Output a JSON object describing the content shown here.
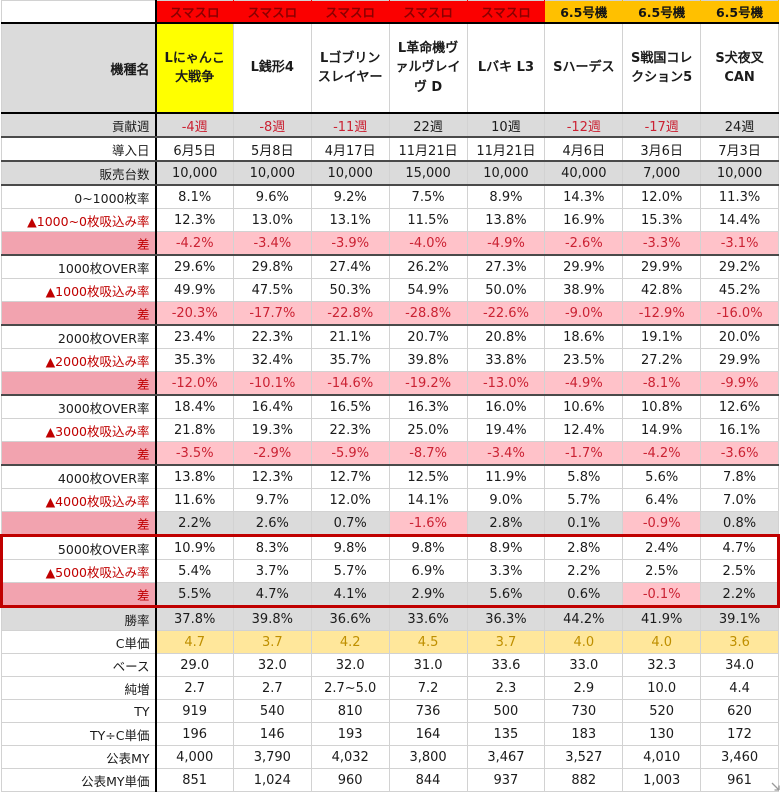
{
  "colors": {
    "type_red_bg": "#FB0000",
    "type_red_text": "#8B0000",
    "type_orange_bg": "#FFC000",
    "highlight_yellow": "#FFFF00",
    "row_gray": "#DBDBDB",
    "diff_pink_label": "#F2A3AF",
    "diff_pink_cell": "#FFC2C9",
    "neg_red": "#CB2233",
    "label_red": "#C00000",
    "cost_yellow": "#FFE79B",
    "cost_text": "#BF8F00",
    "block_border": "#C00000"
  },
  "table": {
    "corner": "",
    "machine_label": "機種名",
    "types": [
      {
        "label": "スマスロ",
        "style": "red"
      },
      {
        "label": "スマスロ",
        "style": "red"
      },
      {
        "label": "スマスロ",
        "style": "red"
      },
      {
        "label": "スマスロ",
        "style": "red"
      },
      {
        "label": "スマスロ",
        "style": "red"
      },
      {
        "label": "6.5号機",
        "style": "orange"
      },
      {
        "label": "6.5号機",
        "style": "orange"
      },
      {
        "label": "6.5号機",
        "style": "orange"
      }
    ],
    "machines": [
      {
        "name": "Lにゃんこ大戦争",
        "highlight": true
      },
      {
        "name": "L銭形4",
        "highlight": false
      },
      {
        "name": "Lゴブリンスレイヤー",
        "highlight": false
      },
      {
        "name": "L革命機ヴァルヴレイヴ D",
        "highlight": false
      },
      {
        "name": "Lバキ L3",
        "highlight": false
      },
      {
        "name": "Sハーデス",
        "highlight": false
      },
      {
        "name": "S戦国コレクション5",
        "highlight": false
      },
      {
        "name": "S犬夜叉CAN",
        "highlight": false
      }
    ],
    "rows": [
      {
        "label": "貢献週",
        "style": "gray",
        "neg_red": true,
        "hb": true,
        "values": [
          "-4週",
          "-8週",
          "-11週",
          "22週",
          "10週",
          "-12週",
          "-17週",
          "24週"
        ]
      },
      {
        "label": "導入日",
        "style": "white",
        "hb": true,
        "values": [
          "6月5日",
          "5月8日",
          "4月17日",
          "11月21日",
          "11月21日",
          "4月6日",
          "3月6日",
          "7月3日"
        ]
      },
      {
        "label": "販売台数",
        "style": "gray",
        "hb": true,
        "values": [
          "10,000",
          "10,000",
          "10,000",
          "15,000",
          "10,000",
          "40,000",
          "7,000",
          "10,000"
        ]
      },
      {
        "label": "0~1000枚率",
        "style": "white",
        "values": [
          "8.1%",
          "9.6%",
          "9.2%",
          "7.5%",
          "8.9%",
          "14.3%",
          "12.0%",
          "11.3%"
        ]
      },
      {
        "label": "▲1000~0枚吸込み率",
        "style": "suck",
        "values": [
          "12.3%",
          "13.0%",
          "13.1%",
          "11.5%",
          "13.8%",
          "16.9%",
          "15.3%",
          "14.4%"
        ]
      },
      {
        "label": "差",
        "style": "diff",
        "hb": true,
        "values": [
          "-4.2%",
          "-3.4%",
          "-3.9%",
          "-4.0%",
          "-4.9%",
          "-2.6%",
          "-3.3%",
          "-3.1%"
        ]
      },
      {
        "label": "1000枚OVER率",
        "style": "white",
        "values": [
          "29.6%",
          "29.8%",
          "27.4%",
          "26.2%",
          "27.3%",
          "29.9%",
          "29.9%",
          "29.2%"
        ]
      },
      {
        "label": "▲1000枚吸込み率",
        "style": "suck",
        "values": [
          "49.9%",
          "47.5%",
          "50.3%",
          "54.9%",
          "50.0%",
          "38.9%",
          "42.8%",
          "45.2%"
        ]
      },
      {
        "label": "差",
        "style": "diff",
        "hb": true,
        "values": [
          "-20.3%",
          "-17.7%",
          "-22.8%",
          "-28.8%",
          "-22.6%",
          "-9.0%",
          "-12.9%",
          "-16.0%"
        ]
      },
      {
        "label": "2000枚OVER率",
        "style": "white",
        "values": [
          "23.4%",
          "22.3%",
          "21.1%",
          "20.7%",
          "20.8%",
          "18.6%",
          "19.1%",
          "20.0%"
        ]
      },
      {
        "label": "▲2000枚吸込み率",
        "style": "suck",
        "values": [
          "35.3%",
          "32.4%",
          "35.7%",
          "39.8%",
          "33.8%",
          "23.5%",
          "27.2%",
          "29.9%"
        ]
      },
      {
        "label": "差",
        "style": "diff",
        "hb": true,
        "values": [
          "-12.0%",
          "-10.1%",
          "-14.6%",
          "-19.2%",
          "-13.0%",
          "-4.9%",
          "-8.1%",
          "-9.9%"
        ]
      },
      {
        "label": "3000枚OVER率",
        "style": "white",
        "values": [
          "18.4%",
          "16.4%",
          "16.5%",
          "16.3%",
          "16.0%",
          "10.6%",
          "10.8%",
          "12.6%"
        ]
      },
      {
        "label": "▲3000枚吸込み率",
        "style": "suck",
        "values": [
          "21.8%",
          "19.3%",
          "22.3%",
          "25.0%",
          "19.4%",
          "12.4%",
          "14.9%",
          "16.1%"
        ]
      },
      {
        "label": "差",
        "style": "diff",
        "hb": true,
        "values": [
          "-3.5%",
          "-2.9%",
          "-5.9%",
          "-8.7%",
          "-3.4%",
          "-1.7%",
          "-4.2%",
          "-3.6%"
        ]
      },
      {
        "label": "4000枚OVER率",
        "style": "white",
        "values": [
          "13.8%",
          "12.3%",
          "12.7%",
          "12.5%",
          "11.9%",
          "5.8%",
          "5.6%",
          "7.8%"
        ]
      },
      {
        "label": "▲4000枚吸込み率",
        "style": "suck",
        "values": [
          "11.6%",
          "9.7%",
          "12.0%",
          "14.1%",
          "9.0%",
          "5.7%",
          "6.4%",
          "7.0%"
        ]
      },
      {
        "label": "差",
        "style": "diffmix",
        "hb": true,
        "values": [
          "2.2%",
          "2.6%",
          "0.7%",
          "-1.6%",
          "2.8%",
          "0.1%",
          "-0.9%",
          "0.8%"
        ]
      },
      {
        "label": "5000枚OVER率",
        "style": "white",
        "block": "top",
        "values": [
          "10.9%",
          "8.3%",
          "9.8%",
          "9.8%",
          "8.9%",
          "2.8%",
          "2.4%",
          "4.7%"
        ]
      },
      {
        "label": "▲5000枚吸込み率",
        "style": "suck",
        "block": "mid",
        "values": [
          "5.4%",
          "3.7%",
          "5.7%",
          "6.9%",
          "3.3%",
          "2.2%",
          "2.5%",
          "2.5%"
        ]
      },
      {
        "label": "差",
        "style": "diffmix",
        "block": "bot",
        "values": [
          "5.5%",
          "4.7%",
          "4.1%",
          "2.9%",
          "5.6%",
          "0.6%",
          "-0.1%",
          "2.2%"
        ]
      },
      {
        "label": "勝率",
        "style": "gray",
        "values": [
          "37.8%",
          "39.8%",
          "36.6%",
          "33.6%",
          "36.3%",
          "44.2%",
          "41.9%",
          "39.1%"
        ]
      },
      {
        "label": "C単価",
        "style": "cost",
        "values": [
          "4.7",
          "3.7",
          "4.2",
          "4.5",
          "3.7",
          "4.0",
          "4.0",
          "3.6"
        ]
      },
      {
        "label": "ベース",
        "style": "white",
        "values": [
          "29.0",
          "32.0",
          "32.0",
          "31.0",
          "33.6",
          "33.0",
          "32.3",
          "34.0"
        ]
      },
      {
        "label": "純増",
        "style": "white",
        "values": [
          "2.7",
          "2.7",
          "2.7~5.0",
          "7.2",
          "2.3",
          "2.9",
          "10.0",
          "4.4"
        ]
      },
      {
        "label": "TY",
        "style": "white",
        "values": [
          "919",
          "540",
          "810",
          "736",
          "500",
          "730",
          "520",
          "620"
        ]
      },
      {
        "label": "TY÷C単価",
        "style": "white",
        "values": [
          "196",
          "146",
          "193",
          "164",
          "135",
          "183",
          "130",
          "172"
        ]
      },
      {
        "label": "公表MY",
        "style": "white",
        "values": [
          "4,000",
          "3,790",
          "4,032",
          "3,800",
          "3,467",
          "3,527",
          "4,010",
          "3,460"
        ]
      },
      {
        "label": "公表MY単価",
        "style": "white",
        "values": [
          "851",
          "1,024",
          "960",
          "844",
          "937",
          "882",
          "1,003",
          "961"
        ]
      }
    ]
  }
}
